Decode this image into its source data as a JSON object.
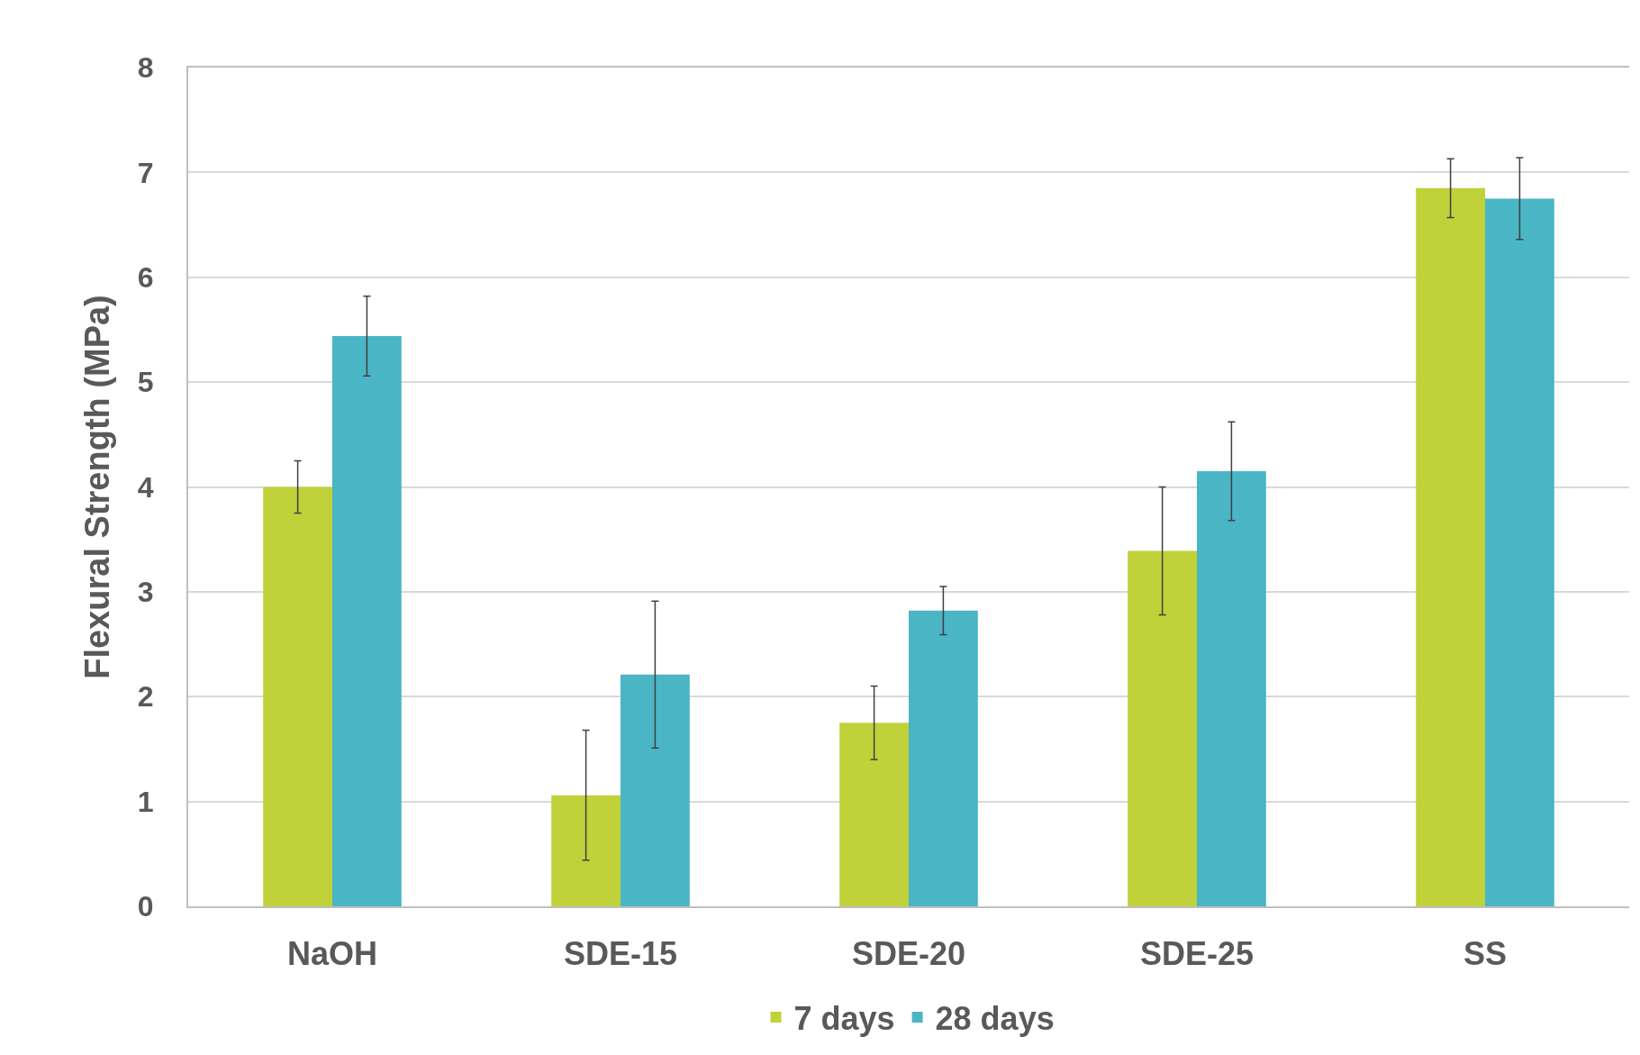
{
  "chart_data": {
    "type": "bar",
    "ylabel": "Flexural Strength (MPa)",
    "categories": [
      "NaOH",
      "SDE-15",
      "SDE-20",
      "SDE-25",
      "SS"
    ],
    "series": [
      {
        "name": "7 days",
        "color": "#c0d13a",
        "values": [
          4.0,
          1.06,
          1.75,
          3.39,
          6.85
        ],
        "errors": [
          0.25,
          0.62,
          0.35,
          0.61,
          0.28
        ]
      },
      {
        "name": "28 days",
        "color": "#4ab5c4",
        "values": [
          5.44,
          2.21,
          2.82,
          4.15,
          6.75
        ],
        "errors": [
          0.38,
          0.7,
          0.23,
          0.47,
          0.39
        ]
      }
    ],
    "ylim": [
      0,
      8
    ],
    "yticks": [
      0,
      1,
      2,
      3,
      4,
      5,
      6,
      7,
      8
    ],
    "grid": "y",
    "legend": "bottom"
  }
}
